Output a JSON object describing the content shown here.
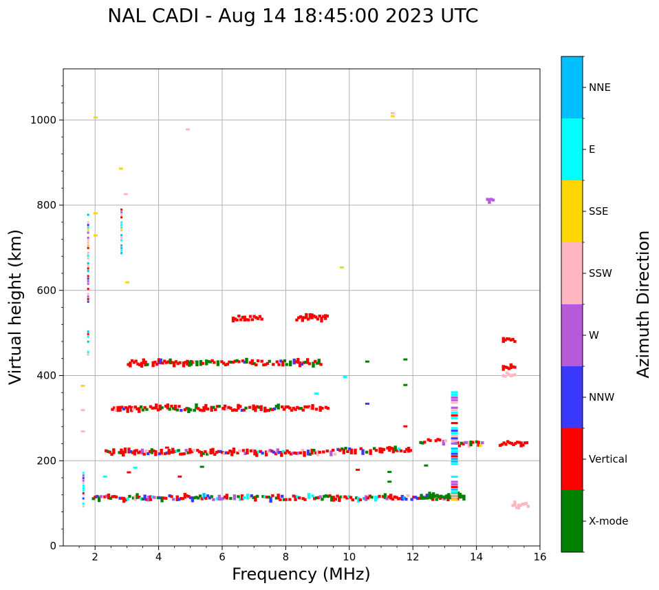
{
  "chart_data": {
    "type": "scatter",
    "title": "NAL CADI - Aug 14 18:45:00 2023 UTC",
    "xlabel": "Frequency (MHz)",
    "ylabel": "Virtual height (km)",
    "xlim": [
      1,
      16
    ],
    "ylim": [
      0,
      1120
    ],
    "xticks": [
      2,
      4,
      6,
      8,
      10,
      12,
      14,
      16
    ],
    "yticks": [
      0,
      200,
      400,
      600,
      800,
      1000
    ],
    "grid": true,
    "colorbar": {
      "label": "Azimuth Direction",
      "position": "right",
      "categories": [
        {
          "name": "X-mode",
          "color": "#008000"
        },
        {
          "name": "Vertical",
          "color": "#ff0000"
        },
        {
          "name": "NNW",
          "color": "#3a3aff"
        },
        {
          "name": "W",
          "color": "#b65ad9"
        },
        {
          "name": "SSW",
          "color": "#ffb6c1"
        },
        {
          "name": "SSE",
          "color": "#ffd700"
        },
        {
          "name": "E",
          "color": "#00ffff"
        },
        {
          "name": "NNE",
          "color": "#00bfff"
        }
      ]
    },
    "segments": [
      {
        "x0": 1.9,
        "x1": 13.6,
        "h": 113,
        "dir": "mixed_lo"
      },
      {
        "x0": 12.3,
        "x1": 13.6,
        "h": 117,
        "dir": "X-mode"
      },
      {
        "x0": 2.3,
        "x1": 9.5,
        "h": 220,
        "dir": "mixed_mid"
      },
      {
        "x0": 9.6,
        "x1": 12.0,
        "h": 225,
        "dir": "mixed_mid"
      },
      {
        "x0": 12.2,
        "x1": 13.0,
        "h": 245,
        "dir": "mixed_hi"
      },
      {
        "x0": 13.3,
        "x1": 14.2,
        "h": 240,
        "dir": "mixed_hi"
      },
      {
        "x0": 14.7,
        "x1": 15.6,
        "h": 240,
        "dir": "Vertical"
      },
      {
        "x0": 2.5,
        "x1": 9.3,
        "h": 323,
        "dir": "mixed_f2"
      },
      {
        "x0": 3.0,
        "x1": 9.2,
        "h": 430,
        "dir": "mixed_f2"
      },
      {
        "x0": 6.3,
        "x1": 7.2,
        "h": 535,
        "dir": "Vertical"
      },
      {
        "x0": 8.3,
        "x1": 9.3,
        "h": 535,
        "dir": "Vertical"
      },
      {
        "x0": 14.8,
        "x1": 15.2,
        "h": 483,
        "dir": "Vertical"
      },
      {
        "x0": 14.8,
        "x1": 15.2,
        "h": 420,
        "dir": "Vertical"
      },
      {
        "x0": 14.8,
        "x1": 15.2,
        "h": 402,
        "dir": "SSW"
      },
      {
        "x0": 15.1,
        "x1": 15.6,
        "h": 95,
        "dir": "SSW"
      },
      {
        "x0": 14.3,
        "x1": 14.5,
        "h": 810,
        "dir": "W"
      }
    ],
    "columns": [
      {
        "x": 1.6,
        "h0": 90,
        "h1": 190,
        "dir": "mixed"
      },
      {
        "x": 1.75,
        "h0": 440,
        "h1": 510,
        "dir": "mixed"
      },
      {
        "x": 1.75,
        "h0": 570,
        "h1": 785,
        "dir": "mixed"
      },
      {
        "x": 2.8,
        "h0": 690,
        "h1": 800,
        "dir": "mixed"
      },
      {
        "x": 13.2,
        "h0": 105,
        "h1": 165,
        "dir": "mixed"
      },
      {
        "x": 13.2,
        "h0": 195,
        "h1": 380,
        "dir": "mixed"
      }
    ],
    "scatter_points": [
      {
        "x": 1.95,
        "h": 1005,
        "dir": "SSE"
      },
      {
        "x": 11.3,
        "h": 1008,
        "dir": "SSE"
      },
      {
        "x": 11.3,
        "h": 1015,
        "dir": "SSW"
      },
      {
        "x": 4.85,
        "h": 977,
        "dir": "SSW"
      },
      {
        "x": 2.75,
        "h": 885,
        "dir": "SSE"
      },
      {
        "x": 2.9,
        "h": 825,
        "dir": "SSW"
      },
      {
        "x": 2.95,
        "h": 618,
        "dir": "SSE"
      },
      {
        "x": 9.7,
        "h": 653,
        "dir": "SSE"
      },
      {
        "x": 1.95,
        "h": 780,
        "dir": "SSE"
      },
      {
        "x": 1.95,
        "h": 728,
        "dir": "SSE"
      },
      {
        "x": 1.55,
        "h": 375,
        "dir": "SSE"
      },
      {
        "x": 1.55,
        "h": 318,
        "dir": "SSW"
      },
      {
        "x": 1.55,
        "h": 268,
        "dir": "SSW"
      },
      {
        "x": 2.25,
        "h": 162,
        "dir": "E"
      },
      {
        "x": 10.2,
        "h": 178,
        "dir": "Vertical"
      },
      {
        "x": 11.2,
        "h": 173,
        "dir": "X-mode"
      },
      {
        "x": 11.2,
        "h": 150,
        "dir": "X-mode"
      },
      {
        "x": 12.35,
        "h": 188,
        "dir": "X-mode"
      },
      {
        "x": 11.7,
        "h": 437,
        "dir": "X-mode"
      },
      {
        "x": 11.7,
        "h": 377,
        "dir": "X-mode"
      },
      {
        "x": 11.7,
        "h": 280,
        "dir": "Vertical"
      },
      {
        "x": 9.8,
        "h": 396,
        "dir": "E"
      },
      {
        "x": 10.5,
        "h": 432,
        "dir": "X-mode"
      },
      {
        "x": 10.5,
        "h": 333,
        "dir": "NNW"
      },
      {
        "x": 8.9,
        "h": 357,
        "dir": "E"
      },
      {
        "x": 4.2,
        "h": 230,
        "dir": "Vertical"
      },
      {
        "x": 5.3,
        "h": 185,
        "dir": "X-mode"
      },
      {
        "x": 4.6,
        "h": 162,
        "dir": "Vertical"
      },
      {
        "x": 3.2,
        "h": 183,
        "dir": "E"
      },
      {
        "x": 3.0,
        "h": 172,
        "dir": "Vertical"
      }
    ]
  }
}
